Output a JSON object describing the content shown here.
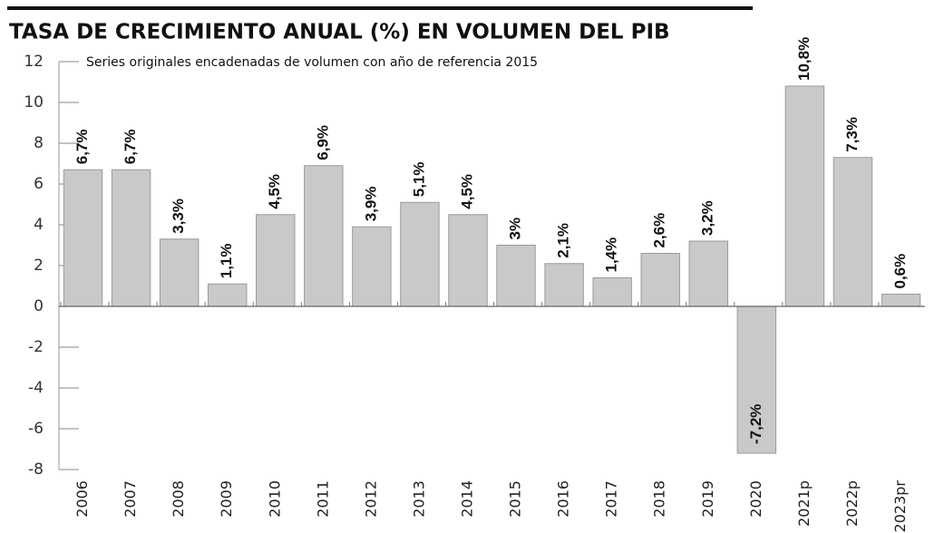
{
  "chart_data": {
    "type": "bar",
    "title": "TASA DE CRECIMIENTO ANUAL (%) EN VOLUMEN DEL PIB",
    "subtitle": "Series originales encadenadas de volumen con año de referencia 2015",
    "categories": [
      "2006",
      "2007",
      "2008",
      "2009",
      "2010",
      "2011",
      "2012",
      "2013",
      "2014",
      "2015",
      "2016",
      "2017",
      "2018",
      "2019",
      "2020",
      "2021p",
      "2022p",
      "2023pr"
    ],
    "values": [
      6.7,
      6.7,
      3.3,
      1.1,
      4.5,
      6.9,
      3.9,
      5.1,
      4.5,
      3,
      2.1,
      1.4,
      2.6,
      3.2,
      -7.2,
      10.8,
      7.3,
      0.6
    ],
    "value_labels": [
      "6,7%",
      "6,7%",
      "3,3%",
      "1,1%",
      "4,5%",
      "6,9%",
      "3,9%",
      "5,1%",
      "4,5%",
      "3%",
      "2,1%",
      "1,4%",
      "2,6%",
      "3,2%",
      "-7,2%",
      "10,8%",
      "7,3%",
      "0,6%"
    ],
    "color": "#c9c9c9",
    "ylim": [
      -8,
      12
    ],
    "yticks": [
      -8,
      -6,
      -4,
      -2,
      0,
      2,
      4,
      6,
      8,
      10,
      12
    ]
  }
}
